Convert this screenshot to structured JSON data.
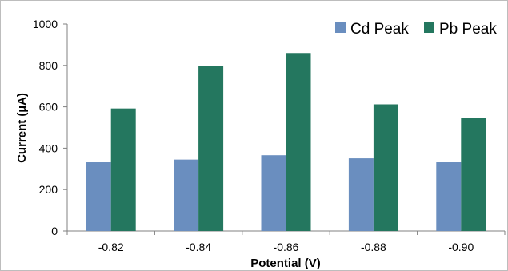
{
  "chart_data": {
    "type": "bar",
    "xlabel": "Potential (V)",
    "ylabel": "Current (µA)",
    "categories": [
      "-0.82",
      "-0.84",
      "-0.86",
      "-0.88",
      "-0.90"
    ],
    "series": [
      {
        "name": "Cd Peak",
        "values": [
          332,
          345,
          366,
          351,
          332
        ],
        "color": "#6a8ebf"
      },
      {
        "name": "Pb Peak",
        "values": [
          592,
          798,
          860,
          612,
          548
        ],
        "color": "#24775f"
      }
    ],
    "ylim": [
      0,
      1000
    ],
    "yticks": [
      "0",
      "200",
      "400",
      "600",
      "800",
      "1000"
    ],
    "ytick_values": [
      0,
      200,
      400,
      600,
      800,
      1000
    ],
    "legend_position": "top-right",
    "grid": false
  }
}
